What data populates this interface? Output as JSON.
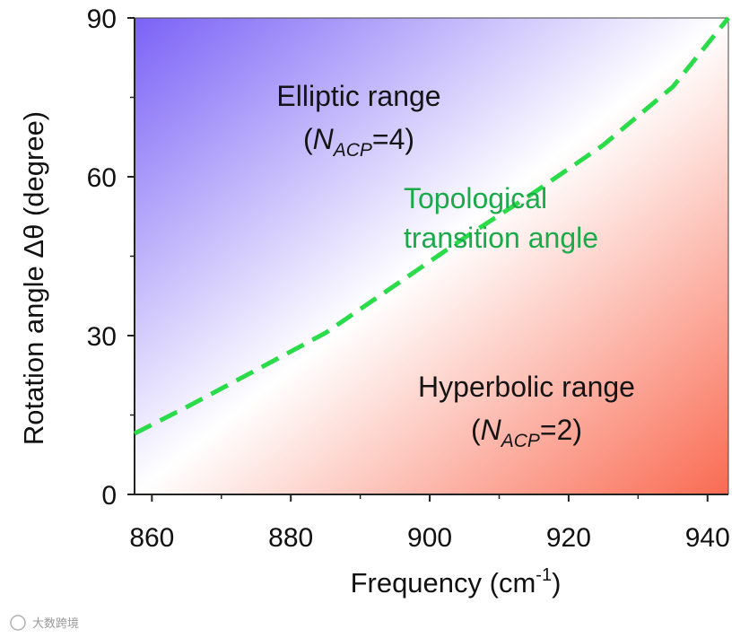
{
  "chart_data": {
    "type": "line",
    "xlabel_main": "Frequency (cm",
    "xlabel_sup": "-1",
    "xlabel_close": ")",
    "ylabel": "Rotation angle Δθ (degree)",
    "xlim": [
      857.5,
      943
    ],
    "ylim": [
      0,
      90
    ],
    "x_ticks": [
      860,
      880,
      900,
      920,
      940
    ],
    "y_ticks": [
      0,
      30,
      60,
      90
    ],
    "x_tick_labels": [
      "860",
      "880",
      "900",
      "920",
      "940"
    ],
    "y_tick_labels": [
      "0",
      "30",
      "60",
      "90"
    ],
    "series": [
      {
        "name": "Topological transition angle",
        "style": "dashed",
        "color": "#2bdc4a",
        "x": [
          857.5,
          865,
          875,
          885,
          895,
          905,
          915,
          925,
          935,
          943
        ],
        "y": [
          11.5,
          16.5,
          23.5,
          30.5,
          39.5,
          48.5,
          57,
          66,
          77,
          90
        ]
      }
    ],
    "annotations": {
      "elliptic": {
        "line1": "Elliptic range",
        "sym": "N",
        "sub": "ACP",
        "eq": "=4",
        "open": "(",
        "close": ")"
      },
      "hyperbolic": {
        "line1": "Hyperbolic range",
        "sym": "N",
        "sub": "ACP",
        "eq": "=2",
        "open": "(",
        "close": ")"
      },
      "curve_label": {
        "line1": "Topological",
        "line2": "transition angle"
      }
    },
    "gradient_colors": {
      "elliptic": "#7b62f6",
      "neutral": "#ffffff",
      "hyperbolic": "#f96b52"
    }
  },
  "watermark": "大数跨境"
}
